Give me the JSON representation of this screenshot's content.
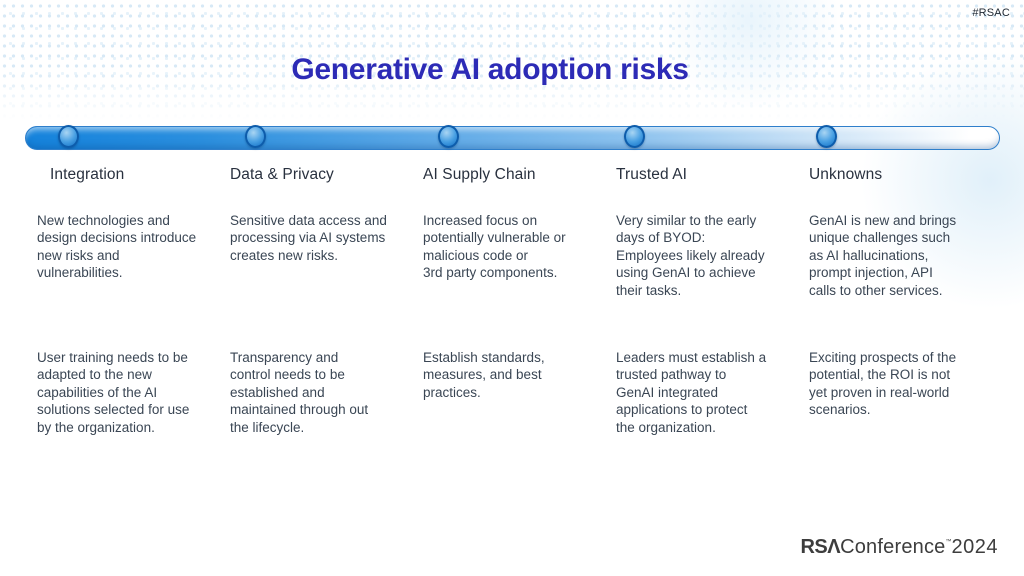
{
  "slide": {
    "hashtag": "#RSAC",
    "title": "Generative AI adoption risks",
    "footer": {
      "rsa": "RSΛ",
      "conference": "Conference",
      "tm": "™",
      "year": "2024"
    }
  },
  "colors": {
    "title_blue": "#2d2bb6",
    "bar_blue_start": "#1583dc",
    "bar_blue_end": "#ffffff",
    "node_ring": "#0d5cab",
    "body_text": "#3a4654",
    "heading_text": "#29313f"
  },
  "timeline": {
    "node_count": 5
  },
  "columns": [
    {
      "title": "Integration",
      "risk": "New technologies and\ndesign decisions introduce\nnew risks and\nvulnerabilities.",
      "mitigation": "User training needs to be\nadapted to the new\ncapabilities of the AI\nsolutions selected for use\nby the organization."
    },
    {
      "title": "Data & Privacy",
      "risk": "Sensitive data access and\nprocessing via AI systems\ncreates new risks.",
      "mitigation": "Transparency and\ncontrol needs to be\nestablished and\nmaintained through out\nthe lifecycle."
    },
    {
      "title": "AI Supply Chain",
      "risk": "Increased focus on\npotentially vulnerable or\nmalicious code or\n3rd party components.",
      "mitigation": "Establish standards,\nmeasures, and best\npractices."
    },
    {
      "title": "Trusted AI",
      "risk": "Very similar to the early\ndays of BYOD:\nEmployees likely already\nusing GenAI to achieve\ntheir tasks.",
      "mitigation": "Leaders must establish a\ntrusted pathway to\nGenAI integrated\napplications to protect\nthe organization."
    },
    {
      "title": "Unknowns",
      "risk": "GenAI is new and brings\nunique challenges such\nas AI hallucinations,\nprompt injection, API\ncalls to other services.",
      "mitigation": "Exciting prospects of the\npotential, the ROI is not\nyet proven in real-world\nscenarios."
    }
  ]
}
